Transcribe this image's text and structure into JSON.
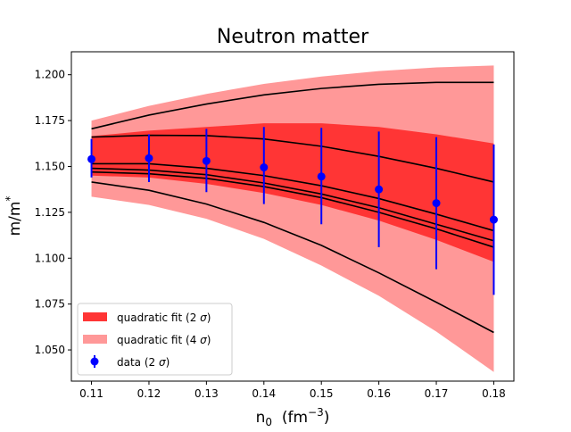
{
  "chart_data": {
    "type": "line",
    "title": "Neutron matter",
    "xlabel": {
      "base": "n",
      "sub": "0",
      "rest": "  (fm",
      "sup": "−3",
      "end": ")"
    },
    "ylabel": {
      "base": "m/m",
      "sup": "*"
    },
    "xlim": [
      0.1065,
      0.1835
    ],
    "ylim": [
      1.033,
      1.2125
    ],
    "xticks": [
      "0.11",
      "0.12",
      "0.13",
      "0.14",
      "0.15",
      "0.16",
      "0.17",
      "0.18"
    ],
    "yticks": [
      "1.050",
      "1.075",
      "1.100",
      "1.125",
      "1.150",
      "1.175",
      "1.200"
    ],
    "x": [
      0.11,
      0.12,
      0.13,
      0.14,
      0.15,
      0.16,
      0.17,
      0.18
    ],
    "bands": [
      {
        "name": "quadratic fit (4 σ)",
        "label_base": "quadratic fit (4 ",
        "label_sym": "σ",
        "label_end": ")",
        "color": "#ff9898",
        "lower": [
          1.1335,
          1.129,
          1.1215,
          1.1105,
          1.096,
          1.0795,
          1.06,
          1.038
        ],
        "upper": [
          1.175,
          1.183,
          1.1895,
          1.195,
          1.199,
          1.202,
          1.204,
          1.205
        ]
      },
      {
        "name": "quadratic fit (2 σ)",
        "label_base": "quadratic fit (2 ",
        "label_sym": "σ",
        "label_end": ")",
        "color": "#ff3535",
        "lower": [
          1.145,
          1.144,
          1.1405,
          1.1355,
          1.129,
          1.1205,
          1.11,
          1.098
        ],
        "upper": [
          1.1665,
          1.1695,
          1.1715,
          1.1735,
          1.1735,
          1.1715,
          1.1675,
          1.1625
        ]
      }
    ],
    "series": [
      {
        "values": [
          1.1705,
          1.178,
          1.184,
          1.189,
          1.1925,
          1.1948,
          1.1958,
          1.1958
        ]
      },
      {
        "values": [
          1.166,
          1.167,
          1.1668,
          1.165,
          1.161,
          1.1555,
          1.149,
          1.1415
        ]
      },
      {
        "values": [
          1.1515,
          1.1515,
          1.149,
          1.145,
          1.1395,
          1.1325,
          1.124,
          1.115
        ]
      },
      {
        "values": [
          1.149,
          1.148,
          1.1455,
          1.141,
          1.135,
          1.1275,
          1.1185,
          1.1095
        ]
      },
      {
        "values": [
          1.147,
          1.146,
          1.1435,
          1.139,
          1.133,
          1.125,
          1.116,
          1.106
        ]
      },
      {
        "values": [
          1.1415,
          1.137,
          1.1295,
          1.1195,
          1.107,
          1.092,
          1.076,
          1.0595
        ]
      }
    ],
    "data_points": {
      "name": "data (2 σ)",
      "label_base": "data (2 ",
      "label_sym": "σ",
      "label_end": ")",
      "color": "#0000ff",
      "values": [
        1.154,
        1.1545,
        1.153,
        1.1495,
        1.1445,
        1.1375,
        1.13,
        1.121
      ],
      "lower": [
        1.144,
        1.1415,
        1.136,
        1.1295,
        1.1185,
        1.106,
        1.094,
        1.08
      ],
      "upper": [
        1.165,
        1.1675,
        1.1705,
        1.1715,
        1.171,
        1.169,
        1.166,
        1.162
      ]
    },
    "legend_position": "lower-left",
    "grid": false
  }
}
